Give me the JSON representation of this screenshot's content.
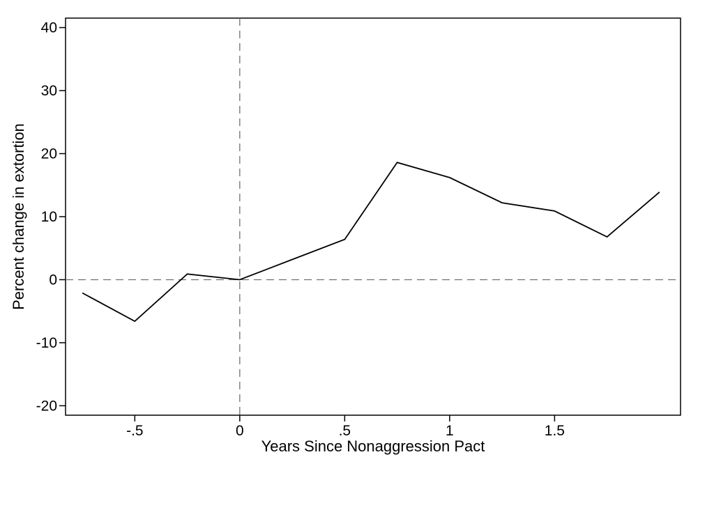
{
  "chart_data": {
    "type": "line",
    "title": "",
    "xlabel": "Years Since Nonaggression Pact",
    "ylabel": "Percent change in extortion",
    "xlim": [
      -0.83,
      2.1
    ],
    "ylim": [
      -21.5,
      41.5
    ],
    "x_ticks": [
      -0.5,
      0,
      0.5,
      1,
      1.5
    ],
    "x_tick_labels": [
      "-.5",
      "0",
      ".5",
      "1",
      "1.5"
    ],
    "y_ticks": [
      -20,
      -10,
      0,
      10,
      20,
      30,
      40
    ],
    "y_tick_labels": [
      "-20",
      "-10",
      "0",
      "10",
      "20",
      "30",
      "40"
    ],
    "grid": false,
    "legend": "none",
    "reference_lines": [
      {
        "axis": "x",
        "value": 0,
        "style": "dashed"
      },
      {
        "axis": "y",
        "value": 0,
        "style": "dashed"
      }
    ],
    "series": [
      {
        "x": [
          -0.75,
          -0.5,
          -0.25,
          0,
          0.25,
          0.5,
          0.75,
          1,
          1.25,
          1.5,
          1.75,
          2
        ],
        "y": [
          -2.1,
          -6.6,
          0.9,
          0.0,
          3.2,
          6.4,
          18.6,
          16.2,
          12.2,
          10.9,
          6.8,
          13.9
        ],
        "color": "#000000"
      }
    ]
  }
}
